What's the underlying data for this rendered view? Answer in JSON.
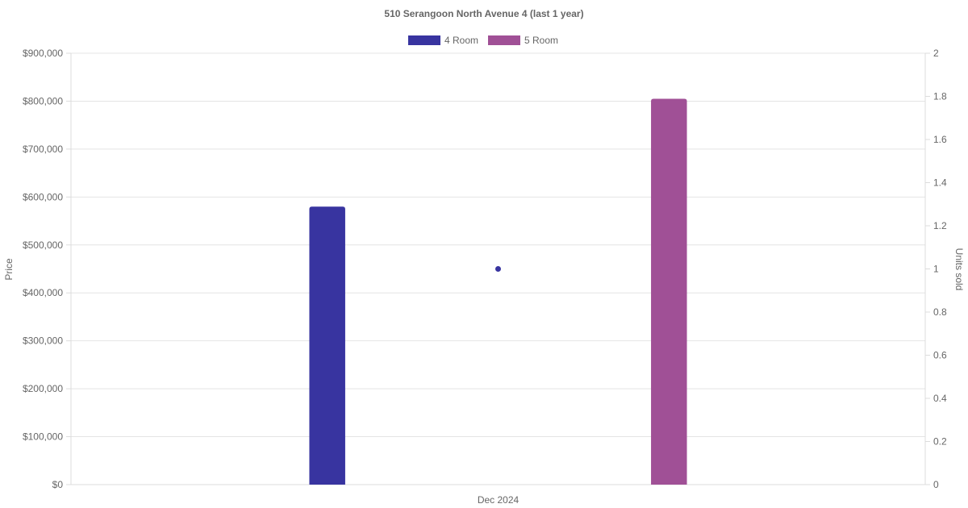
{
  "chart_data": {
    "type": "bar",
    "title": "510 Serangoon North Avenue 4 (last 1 year)",
    "categories": [
      "Dec 2024"
    ],
    "series": [
      {
        "name": "4 Room",
        "values": [
          580000
        ],
        "color": "#3834a0"
      },
      {
        "name": "5 Room",
        "values": [
          805000
        ],
        "color": "#a05096"
      }
    ],
    "units_sold": {
      "values": [
        1
      ],
      "color": "#3834a0"
    },
    "ylabel": "Price",
    "y2label": "Units sold",
    "ylim": [
      0,
      900000
    ],
    "y2lim": [
      0,
      2
    ],
    "yticks": [
      "$0",
      "$100,000",
      "$200,000",
      "$300,000",
      "$400,000",
      "$500,000",
      "$600,000",
      "$700,000",
      "$800,000",
      "$900,000"
    ],
    "y2ticks": [
      "0",
      "0.2",
      "0.4",
      "0.6",
      "0.8",
      "1",
      "1.2",
      "1.4",
      "1.6",
      "1.8",
      "2"
    ],
    "legend_position": "top",
    "grid": true
  }
}
